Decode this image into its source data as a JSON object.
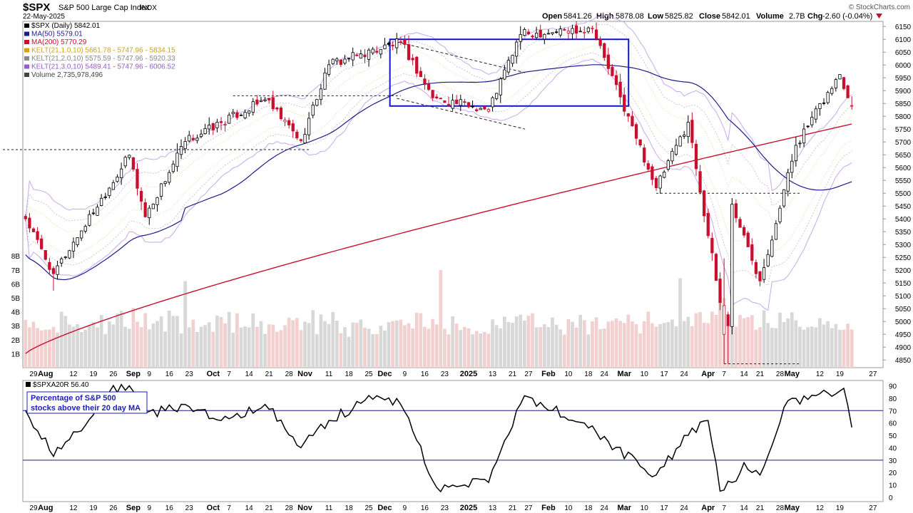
{
  "header": {
    "symbol": "$SPX",
    "name": "S&P 500 Large Cap Index",
    "exchange": "INDX",
    "date": "22-May-2025",
    "open_label": "Open",
    "open": "5841.26",
    "high_label": "High",
    "high": "5878.08",
    "low_label": "Low",
    "low": "5825.82",
    "close_label": "Close",
    "close": "5842.01",
    "volume_label": "Volume",
    "volume": "2.7B",
    "chg_label": "Chg",
    "chg": "-2.60 (-0.04%)",
    "chg_icon": "down-triangle-icon",
    "brand": "© StockCharts.com"
  },
  "legend": [
    {
      "text": "$SPX (Daily) 5842.01",
      "color": "#000000",
      "icon": "candle-icon"
    },
    {
      "text": "MA(50) 5579.01",
      "color": "#1c1c8c",
      "icon": "line-swatch"
    },
    {
      "text": "MA(200) 5770.29",
      "color": "#c8102e",
      "icon": "line-swatch"
    },
    {
      "text": "KELT(21,1.0,10) 5661.78 - 5747.96 - 5834.15",
      "color": "#d4a017",
      "icon": "line-swatch"
    },
    {
      "text": "KELT(21,2.0,10) 5575.59 - 5747.96 - 5920.33",
      "color": "#888888",
      "icon": "line-swatch"
    },
    {
      "text": "KELT(21,3.0,10) 5489.41 - 5747.96 - 6006.52",
      "color": "#9b59d0",
      "icon": "line-swatch"
    },
    {
      "text": "Volume 2,735,978,496",
      "color": "#444444",
      "icon": "volume-bars-icon"
    }
  ],
  "x_labels": [
    "29",
    "Aug",
    "12",
    "19",
    "26",
    "Sep",
    "9",
    "16",
    "23",
    "Oct",
    "7",
    "14",
    "21",
    "28",
    "Nov",
    "11",
    "18",
    "25",
    "Dec",
    "9",
    "16",
    "23",
    "2025",
    "13",
    "21",
    "27",
    "Feb",
    "10",
    "18",
    "24",
    "Mar",
    "10",
    "17",
    "24",
    "Apr",
    "7",
    "14",
    "21",
    "28",
    "May",
    "12",
    "19",
    "27"
  ],
  "x_label_bold": [
    "Aug",
    "Sep",
    "Oct",
    "Nov",
    "Dec",
    "2025",
    "Feb",
    "Mar",
    "Apr",
    "May"
  ],
  "price_axis": [
    "6150",
    "6100",
    "6050",
    "6000",
    "5950",
    "5900",
    "5850",
    "5800",
    "5750",
    "5700",
    "5650",
    "5600",
    "5550",
    "5500",
    "5450",
    "5400",
    "5350",
    "5300",
    "5250",
    "5200",
    "5150",
    "5100",
    "5050",
    "5000",
    "4950",
    "4900",
    "4850"
  ],
  "volume_axis": [
    "8B",
    "7B",
    "6B",
    "5B",
    "4B",
    "3B",
    "2B",
    "1B"
  ],
  "lower_panel": {
    "legend": "$SPXA20R 56.40",
    "note_line1": "Percentage of S&P 500",
    "note_line2": "stocks above their 20 day MA",
    "axis": [
      "90",
      "80",
      "70",
      "60",
      "50",
      "40",
      "30",
      "20",
      "10",
      "0"
    ],
    "reference_lines": [
      70,
      30
    ]
  },
  "chart_data": [
    {
      "type": "candlestick",
      "title": "$SPX (Daily)",
      "ylim": [
        4820,
        6170
      ],
      "y_scale": "linear",
      "grid": false,
      "series": [
        {
          "name": "$SPX",
          "key_points": [
            {
              "date": "Jul-25",
              "close": 5400
            },
            {
              "date": "Aug-05",
              "low": 5120,
              "close": 5186
            },
            {
              "date": "Aug-30",
              "close": 5648
            },
            {
              "date": "Sep-06",
              "close": 5408
            },
            {
              "date": "Sep-20",
              "close": 5702
            },
            {
              "date": "Oct-18",
              "close": 5864
            },
            {
              "date": "Oct-31",
              "close": 5705
            },
            {
              "date": "Nov-11",
              "close": 6001
            },
            {
              "date": "Dec-06",
              "close": 6090
            },
            {
              "date": "Dec-18",
              "close": 5872
            },
            {
              "date": "Jan-10",
              "close": 5827
            },
            {
              "date": "Jan-23",
              "close": 6119
            },
            {
              "date": "Feb-19",
              "close": 6144
            },
            {
              "date": "Mar-13",
              "close": 5521
            },
            {
              "date": "Mar-25",
              "close": 5777
            },
            {
              "date": "Apr-04",
              "close": 5074
            },
            {
              "date": "Apr-08",
              "low": 4835,
              "close": 4983
            },
            {
              "date": "Apr-09",
              "close": 5457
            },
            {
              "date": "Apr-21",
              "close": 5158
            },
            {
              "date": "May-02",
              "close": 5687
            },
            {
              "date": "May-19",
              "close": 5963
            },
            {
              "date": "May-22",
              "open": 5841.26,
              "high": 5878.08,
              "low": 5825.82,
              "close": 5842.01
            }
          ]
        },
        {
          "name": "MA(50)",
          "last": 5579.01
        },
        {
          "name": "MA(200)",
          "last": 5770.29
        },
        {
          "name": "KELT(21,1.0,10)",
          "lower": 5661.78,
          "middle": 5747.96,
          "upper": 5834.15
        },
        {
          "name": "KELT(21,2.0,10)",
          "lower": 5575.59,
          "middle": 5747.96,
          "upper": 5920.33
        },
        {
          "name": "KELT(21,3.0,10)",
          "lower": 5489.41,
          "middle": 5747.96,
          "upper": 6006.52
        }
      ],
      "annotations": [
        {
          "type": "rectangle",
          "color": "#1515c8",
          "date_from": "Dec-04",
          "date_to": "Mar-03",
          "price_from": 5840,
          "price_to": 6100
        },
        {
          "type": "dashed-level",
          "price": 5670,
          "date_from": "Jul-25",
          "date_to": "Nov-04"
        },
        {
          "type": "dashed-level",
          "price": 5880,
          "date_from": "Oct-08",
          "date_to": "Dec-06"
        },
        {
          "type": "dashed-level",
          "price": 5500,
          "date_from": "Mar-13",
          "date_to": "May-05"
        },
        {
          "type": "dashed-level",
          "price": 4835,
          "date_from": "Apr-07",
          "date_to": "May-05"
        }
      ]
    },
    {
      "type": "bar",
      "title": "Volume",
      "ylabel": "Volume",
      "ylim": [
        0,
        9000000000
      ],
      "last": 2735978496
    },
    {
      "type": "line",
      "title": "$SPXA20R",
      "ylim": [
        0,
        92
      ],
      "last": 56.4,
      "reference_lines": [
        70,
        30
      ],
      "series": [
        {
          "name": "$SPXA20R",
          "points": [
            {
              "date": "Jul-25",
              "y": 70
            },
            {
              "date": "Aug-05",
              "y": 33
            },
            {
              "date": "Aug-15",
              "y": 58
            },
            {
              "date": "Aug-23",
              "y": 85
            },
            {
              "date": "Aug-30",
              "y": 90
            },
            {
              "date": "Sep-06",
              "y": 68
            },
            {
              "date": "Sep-13",
              "y": 70
            },
            {
              "date": "Sep-20",
              "y": 75
            },
            {
              "date": "Oct-03",
              "y": 62
            },
            {
              "date": "Oct-18",
              "y": 75
            },
            {
              "date": "Oct-31",
              "y": 40
            },
            {
              "date": "Nov-11",
              "y": 62
            },
            {
              "date": "Nov-27",
              "y": 82
            },
            {
              "date": "Dec-06",
              "y": 75
            },
            {
              "date": "Dec-19",
              "y": 8
            },
            {
              "date": "Jan-10",
              "y": 12
            },
            {
              "date": "Jan-24",
              "y": 82
            },
            {
              "date": "Feb-14",
              "y": 60
            },
            {
              "date": "Feb-25",
              "y": 45
            },
            {
              "date": "Mar-07",
              "y": 25
            },
            {
              "date": "Mar-13",
              "y": 18
            },
            {
              "date": "Mar-25",
              "y": 50
            },
            {
              "date": "Apr-01",
              "y": 62
            },
            {
              "date": "Apr-04",
              "y": 5
            },
            {
              "date": "Apr-09",
              "y": 12
            },
            {
              "date": "Apr-14",
              "y": 28
            },
            {
              "date": "Apr-21",
              "y": 18
            },
            {
              "date": "Apr-30",
              "y": 78
            },
            {
              "date": "May-09",
              "y": 82
            },
            {
              "date": "May-20",
              "y": 88
            },
            {
              "date": "May-22",
              "y": 56.4
            }
          ]
        }
      ]
    }
  ]
}
